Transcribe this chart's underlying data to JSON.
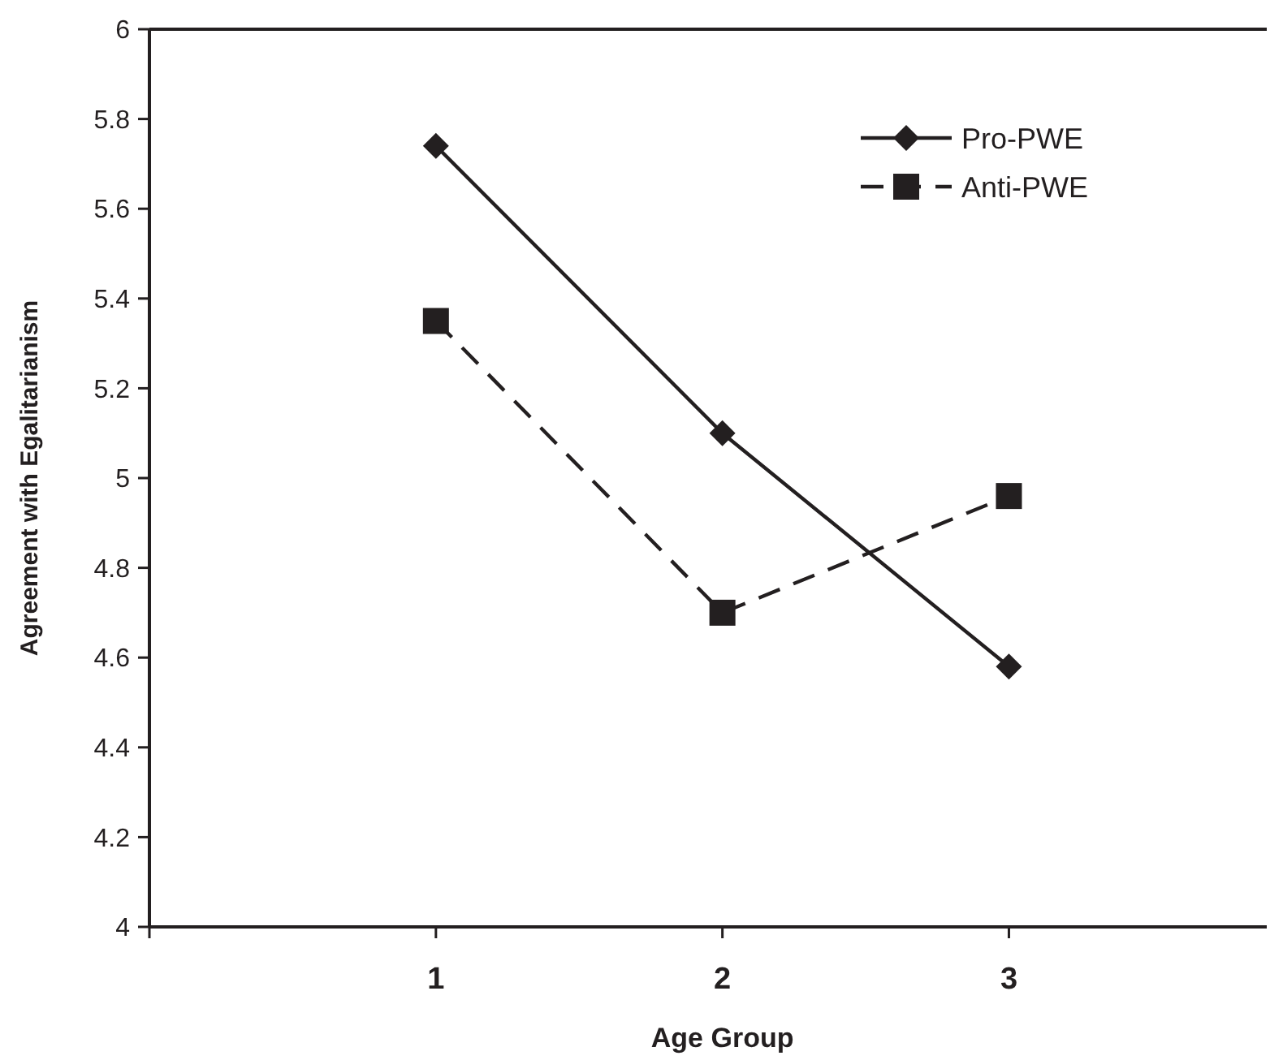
{
  "chart_data": {
    "type": "line",
    "xlabel": "Age Group",
    "ylabel": "Agreement with Egalitarianism",
    "x": [
      1,
      2,
      3
    ],
    "series": [
      {
        "name": "Pro-PWE",
        "color": "#231f20",
        "values": [
          5.74,
          5.1,
          4.58
        ],
        "marker": "diamond",
        "line_style": "solid"
      },
      {
        "name": "Anti-PWE",
        "color": "#231f20",
        "values": [
          5.35,
          4.7,
          4.96
        ],
        "marker": "square",
        "line_style": "dashed"
      }
    ],
    "xlim": [
      0,
      3.9
    ],
    "xticks": [
      {
        "value": 0,
        "label": null
      },
      1,
      2,
      3
    ],
    "ylim": [
      4,
      6
    ],
    "yticks": [
      4,
      4.2,
      4.4,
      4.6,
      4.8,
      5,
      5.2,
      5.4,
      5.6,
      5.8,
      6
    ],
    "grid": false,
    "legend": "top right"
  }
}
